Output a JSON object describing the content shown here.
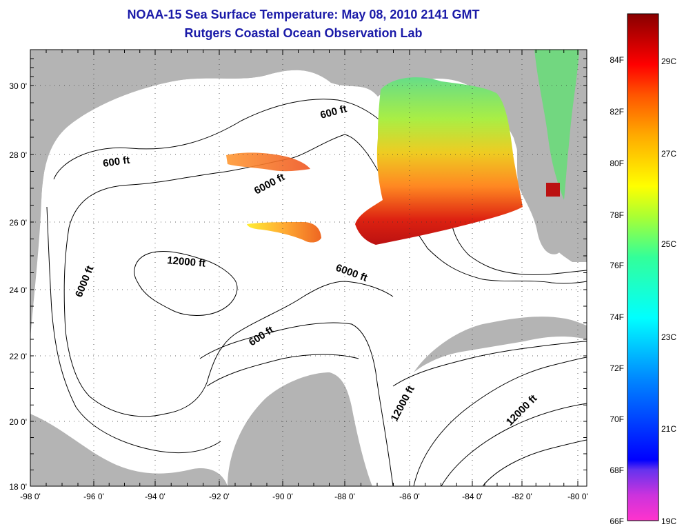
{
  "title": "NOAA-15 Sea Surface Temperature:  May 08, 2010 2141 GMT",
  "subtitle": "Rutgers Coastal Ocean Observation Lab",
  "lat_labels": [
    "30 0'",
    "28 0'",
    "26 0'",
    "24 0'",
    "22 0'",
    "20 0'",
    "18 0'"
  ],
  "lon_labels": [
    "-98 0'",
    "-96 0'",
    "-94 0'",
    "-92 0'",
    "-90 0'",
    "-88 0'",
    "-86 0'",
    "-84 0'",
    "-82 0'",
    "-80 0'"
  ],
  "contour_labels": [
    "600 ft",
    "600 ft",
    "600 ft",
    "6000 ft",
    "6000 ft",
    "6000 ft",
    "12000 ft",
    "12000 ft",
    "12000 ft"
  ],
  "colorbar": {
    "fahrenheit_labels": [
      "84F",
      "82F",
      "80F",
      "78F",
      "76F",
      "74F",
      "72F",
      "70F",
      "68F",
      "66F"
    ],
    "celsius_labels": [
      "29C",
      "27C",
      "25C",
      "23C",
      "21C",
      "19C"
    ],
    "colors": [
      "#ff33cc",
      "#8833ee",
      "#0000ff",
      "#0099ff",
      "#00ffff",
      "#33ff99",
      "#ccff33",
      "#ffff00",
      "#ffaa00",
      "#ff5500",
      "#ff0000",
      "#cc0000",
      "#880000"
    ]
  },
  "colors": {
    "land": "#b4b4b4",
    "ocean": "#ffffff",
    "title": "#1a1aa8"
  }
}
